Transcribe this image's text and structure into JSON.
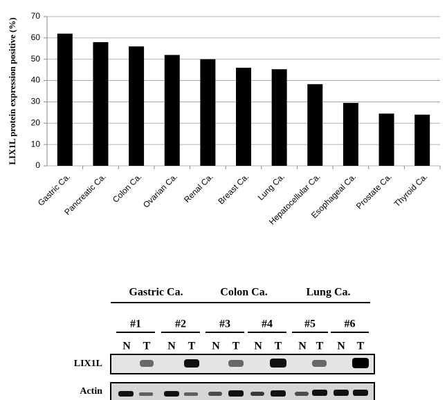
{
  "chart_data": {
    "type": "bar",
    "y_label": "LIX1L protein expression positive (%)",
    "categories": [
      "Gastric Ca.",
      "Pancreatic Ca.",
      "Colon Ca.",
      "Ovarian Ca.",
      "Renal Ca.",
      "Breast Ca.",
      "Lung Ca.",
      "Hepatocellular Ca.",
      "Esophageal Ca.",
      "Prostate Ca.",
      "Thyroid Ca."
    ],
    "values": [
      62,
      58,
      56,
      52,
      50,
      46,
      45.3,
      38.3,
      29.5,
      24.5,
      24
    ],
    "color": "#000000",
    "ylim": [
      0,
      70
    ],
    "yticks": [
      0,
      10,
      20,
      30,
      40,
      50,
      60,
      70
    ],
    "grid": true
  },
  "gel": {
    "groups": [
      "Gastric Ca.",
      "Colon Ca.",
      "Lung Ca."
    ],
    "samples": [
      "#1",
      "#2",
      "#3",
      "#4",
      "#5",
      "#6"
    ],
    "lanes": [
      "N",
      "T",
      "N",
      "T",
      "N",
      "T",
      "N",
      "T",
      "N",
      "T",
      "N",
      "T"
    ],
    "rows": [
      "LIX1L",
      "Actin"
    ]
  }
}
